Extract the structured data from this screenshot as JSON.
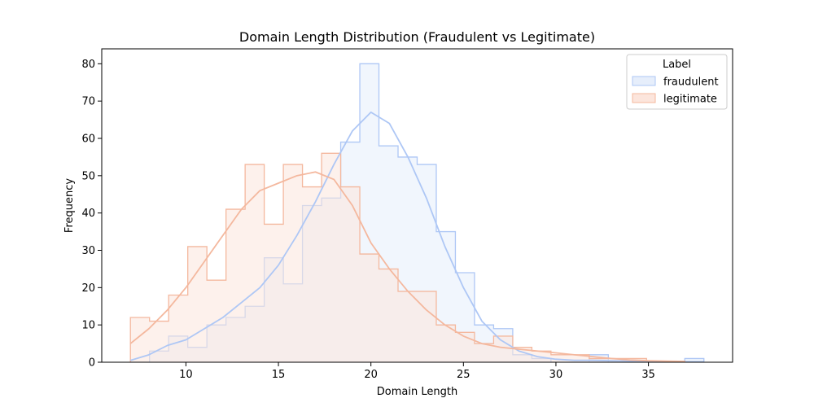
{
  "chart_data": {
    "type": "histogram",
    "title": "Domain Length Distribution (Fraudulent vs Legitimate)",
    "xlabel": "Domain Length",
    "ylabel": "Frequency",
    "xlim": [
      5.45,
      39.55
    ],
    "ylim": [
      0,
      84
    ],
    "xticks": [
      10,
      15,
      20,
      25,
      30,
      35
    ],
    "yticks": [
      0,
      10,
      20,
      30,
      40,
      50,
      60,
      70,
      80
    ],
    "bin_start": 7,
    "bin_width": 1.0333,
    "grid": false,
    "legend": {
      "title": "Label",
      "placement": "top-right"
    },
    "series": [
      {
        "name": "fraudulent",
        "color": "#aec7f5",
        "fill": "#e6eefb",
        "counts": [
          0,
          3,
          7,
          4,
          10,
          12,
          15,
          28,
          21,
          42,
          44,
          59,
          80,
          58,
          55,
          53,
          35,
          24,
          10,
          9,
          2,
          1,
          0,
          0,
          2,
          0,
          0,
          0,
          0,
          1
        ],
        "kde": [
          [
            7,
            0.5
          ],
          [
            8,
            2
          ],
          [
            9,
            4.5
          ],
          [
            10,
            6
          ],
          [
            11,
            9
          ],
          [
            12,
            12
          ],
          [
            13,
            16
          ],
          [
            14,
            20
          ],
          [
            15,
            26
          ],
          [
            16,
            34
          ],
          [
            17,
            43
          ],
          [
            18,
            53
          ],
          [
            19,
            62
          ],
          [
            20,
            67
          ],
          [
            21,
            64
          ],
          [
            22,
            55
          ],
          [
            23,
            44
          ],
          [
            24,
            31
          ],
          [
            25,
            20
          ],
          [
            26,
            11
          ],
          [
            27,
            6
          ],
          [
            28,
            3
          ],
          [
            29,
            1.5
          ],
          [
            30,
            0.8
          ],
          [
            31,
            0.5
          ],
          [
            32,
            0.5
          ],
          [
            33,
            0.4
          ],
          [
            34,
            0.3
          ],
          [
            35,
            0.2
          ],
          [
            36,
            0.2
          ],
          [
            37,
            0.1
          ],
          [
            38,
            0.1
          ]
        ]
      },
      {
        "name": "legitimate",
        "color": "#f4b89e",
        "fill": "#fce5dc",
        "counts": [
          12,
          11,
          18,
          31,
          22,
          41,
          53,
          37,
          53,
          47,
          56,
          47,
          29,
          25,
          19,
          19,
          10,
          8,
          5,
          7,
          4,
          3,
          2,
          2,
          1,
          1,
          1,
          0,
          0,
          0
        ],
        "kde": [
          [
            7,
            5
          ],
          [
            8,
            9
          ],
          [
            9,
            14
          ],
          [
            10,
            20
          ],
          [
            11,
            27
          ],
          [
            12,
            34
          ],
          [
            13,
            41
          ],
          [
            14,
            46
          ],
          [
            15,
            48
          ],
          [
            16,
            50
          ],
          [
            17,
            51
          ],
          [
            18,
            49
          ],
          [
            19,
            42
          ],
          [
            20,
            32
          ],
          [
            21,
            25
          ],
          [
            22,
            19
          ],
          [
            23,
            14
          ],
          [
            24,
            10
          ],
          [
            25,
            7
          ],
          [
            26,
            5
          ],
          [
            27,
            4
          ],
          [
            28,
            3.5
          ],
          [
            29,
            3
          ],
          [
            30,
            2.5
          ],
          [
            31,
            2
          ],
          [
            32,
            1.5
          ],
          [
            33,
            1
          ],
          [
            34,
            0.6
          ],
          [
            35,
            0.4
          ],
          [
            36,
            0.3
          ],
          [
            37,
            0.2
          ]
        ]
      }
    ]
  }
}
